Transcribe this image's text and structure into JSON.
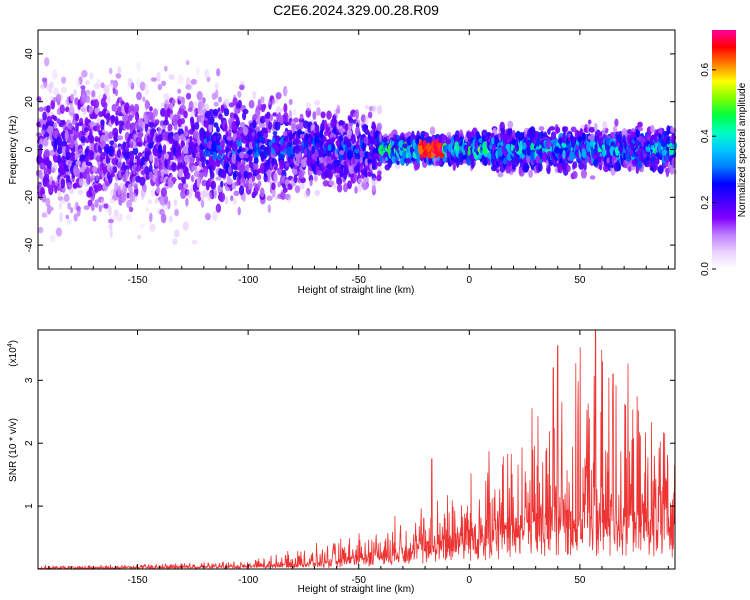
{
  "title": "C2E6.2024.329.00.28.R09",
  "chart_data": [
    {
      "type": "heatmap",
      "panel": "spectrogram",
      "xlabel": "Height of straight line (km)",
      "ylabel": "Frequency (Hz)",
      "xlim": [
        -195,
        93
      ],
      "ylim": [
        -50,
        50
      ],
      "xticks": [
        -150,
        -100,
        -50,
        0,
        50
      ],
      "xtick_labels": [
        "-150",
        "-100",
        "-50",
        "0",
        "50"
      ],
      "yticks": [
        -40,
        -20,
        0,
        20,
        40
      ],
      "ytick_labels": [
        "-40",
        "-20",
        "0",
        "20",
        "40"
      ],
      "colorbar": {
        "label": "Normalized spectral amplitude",
        "range": [
          0,
          0.72
        ],
        "ticks": [
          0.0,
          0.2,
          0.4,
          0.6
        ],
        "tick_labels": [
          "0.0",
          "0.2",
          "0.4",
          "0.6"
        ],
        "colormap": [
          "#ffffff",
          "#e8d0ff",
          "#c080ff",
          "#8000ff",
          "#4000ff",
          "#0000ff",
          "#0080ff",
          "#00c8ff",
          "#00ffc0",
          "#00ff40",
          "#80ff00",
          "#ffff00",
          "#ff8000",
          "#ff0000",
          "#ff00a0"
        ]
      },
      "features": {
        "dense_band_center_hz": 0,
        "strongest_region_km": [
          -45,
          5
        ],
        "peak_near_km": -17,
        "peak_amplitude": 0.72
      }
    },
    {
      "type": "line",
      "panel": "snr",
      "color": "#ee3333",
      "xlabel": "Height of straight line (km)",
      "ylabel": "SNR (10 * v/v)",
      "y_multiplier_label": "(x10",
      "y_multiplier_exponent": "4",
      "y_multiplier_close": ")",
      "xlim": [
        -195,
        93
      ],
      "ylim": [
        0,
        3.8
      ],
      "xticks": [
        -150,
        -100,
        -50,
        0,
        50
      ],
      "xtick_labels": [
        "-150",
        "-100",
        "-50",
        "0",
        "50"
      ],
      "yticks": [
        1,
        2,
        3
      ],
      "ytick_labels": [
        "1",
        "2",
        "3"
      ],
      "envelope_x": [
        -195,
        -150,
        -100,
        -80,
        -60,
        -40,
        -20,
        0,
        20,
        40,
        60,
        80,
        93
      ],
      "envelope_baseline": [
        0.01,
        0.02,
        0.04,
        0.08,
        0.12,
        0.25,
        0.4,
        0.6,
        0.7,
        0.85,
        0.9,
        0.85,
        0.9
      ],
      "envelope_max": [
        0.05,
        0.08,
        0.15,
        0.3,
        0.5,
        0.75,
        1.1,
        1.6,
        2.2,
        3.2,
        3.8,
        2.8,
        2.1
      ],
      "peaks": [
        {
          "x": -17,
          "y": 1.75
        },
        {
          "x": 38,
          "y": 3.2
        },
        {
          "x": 40,
          "y": 3.55
        },
        {
          "x": 57,
          "y": 3.8
        },
        {
          "x": 65,
          "y": 3.1
        }
      ]
    }
  ]
}
